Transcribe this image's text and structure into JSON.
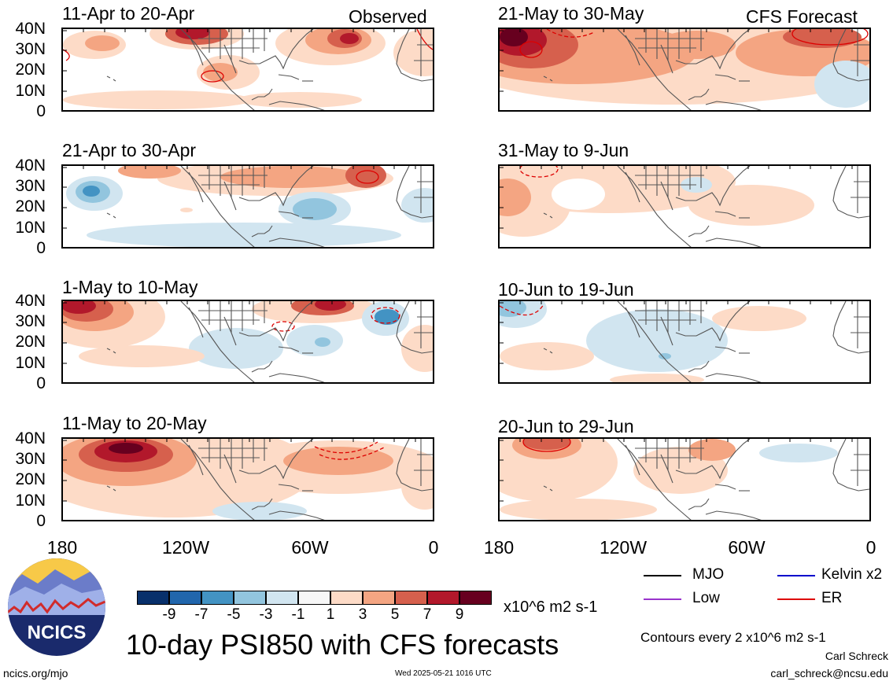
{
  "headers": {
    "observed": "Observed",
    "forecast": "CFS Forecast"
  },
  "panels": {
    "observed": [
      "11-Apr to 20-Apr",
      "21-Apr to 30-Apr",
      "1-May to 10-May",
      "11-May to 20-May"
    ],
    "forecast": [
      "21-May to 30-May",
      "31-May to 9-Jun",
      "10-Jun to 19-Jun",
      "20-Jun to 29-Jun"
    ]
  },
  "lat_ticks": [
    "40N",
    "30N",
    "20N",
    "10N",
    "0"
  ],
  "lon_ticks": [
    "180",
    "120W",
    "60W",
    "0"
  ],
  "colorbar": {
    "labels": [
      "-9",
      "-7",
      "-5",
      "-3",
      "-1",
      "1",
      "3",
      "5",
      "7",
      "9"
    ],
    "colors": [
      "#08306b",
      "#2166ac",
      "#4393c3",
      "#92c5de",
      "#d1e5f0",
      "#f7f7f7",
      "#fddbc7",
      "#f4a582",
      "#d6604d",
      "#b2182b",
      "#67001f"
    ],
    "units": "x10^6 m2 s-1"
  },
  "legend": [
    {
      "label": "MJO",
      "color": "#000000"
    },
    {
      "label": "Kelvin x2",
      "color": "#0000cc"
    },
    {
      "label": "Low",
      "color": "#9933cc"
    },
    {
      "label": "ER",
      "color": "#dd0000"
    }
  ],
  "title": "10-day PSI850 with CFS forecasts",
  "contour_note": "Contours every 2 x10^6 m2 s-1",
  "author": "Carl Schreck",
  "email": "carl_schreck@ncsu.edu",
  "site": "ncics.org/mjo",
  "timestamp": "Wed 2025-05-21 1016 UTC",
  "logo_text": "NCICS"
}
